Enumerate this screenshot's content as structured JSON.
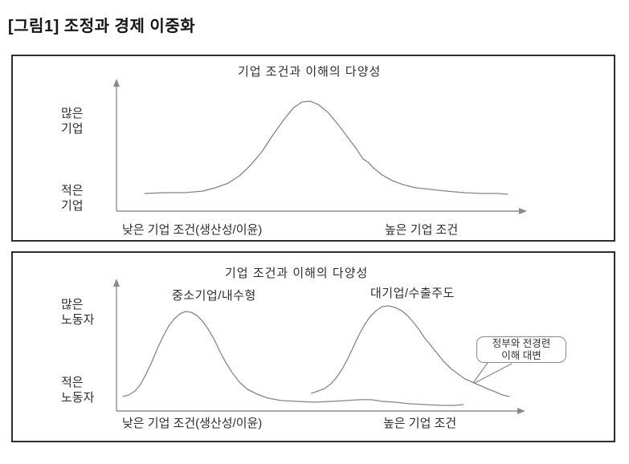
{
  "header": {
    "title": "[그림1] 조정과 경제 이중화"
  },
  "chart_data": [
    {
      "type": "line",
      "title": "기업 조건과 이해의 다양성",
      "x_axis": {
        "left_label": "낮은 기업 조건(생산성/이윤)",
        "right_label": "높은 기업 조건",
        "scale": "qualitative",
        "arrow": true
      },
      "y_axis": {
        "top_label": "많은\n기업",
        "bottom_label": "적은\n기업",
        "scale": "qualitative",
        "arrow": true
      },
      "grid": false,
      "series": [
        {
          "shape": "unimodal-bell",
          "points": [
            [
              0.069,
              0.134
            ],
            [
              0.118,
              0.14
            ],
            [
              0.167,
              0.14
            ],
            [
              0.21,
              0.152
            ],
            [
              0.241,
              0.177
            ],
            [
              0.273,
              0.213
            ],
            [
              0.3,
              0.268
            ],
            [
              0.327,
              0.348
            ],
            [
              0.355,
              0.451
            ],
            [
              0.382,
              0.579
            ],
            [
              0.41,
              0.701
            ],
            [
              0.433,
              0.787
            ],
            [
              0.453,
              0.829
            ],
            [
              0.473,
              0.835
            ],
            [
              0.492,
              0.811
            ],
            [
              0.516,
              0.75
            ],
            [
              0.539,
              0.665
            ],
            [
              0.563,
              0.567
            ],
            [
              0.586,
              0.47
            ],
            [
              0.602,
              0.396
            ],
            [
              0.614,
              0.372
            ],
            [
              0.629,
              0.323
            ],
            [
              0.649,
              0.274
            ],
            [
              0.673,
              0.232
            ],
            [
              0.7,
              0.201
            ],
            [
              0.731,
              0.177
            ],
            [
              0.767,
              0.165
            ],
            [
              0.806,
              0.152
            ],
            [
              0.849,
              0.14
            ],
            [
              0.892,
              0.134
            ],
            [
              0.931,
              0.134
            ],
            [
              0.955,
              0.128
            ]
          ]
        }
      ]
    },
    {
      "type": "line",
      "title": "기업 조건과 이해의 다양성",
      "x_axis": {
        "left_label": "낮은 기업 조건(생산성/이윤)",
        "right_label": "높은 기업 조건",
        "scale": "qualitative",
        "arrow": true
      },
      "y_axis": {
        "top_label": "많은\n노동자",
        "bottom_label": "적은\n노동자",
        "scale": "qualitative",
        "arrow": true
      },
      "grid": false,
      "series": [
        {
          "name": "중소기업/내수형",
          "shape": "left-peak-with-long-low-right-tail",
          "points": [
            [
              0.016,
              0.113
            ],
            [
              0.03,
              0.125
            ],
            [
              0.046,
              0.156
            ],
            [
              0.059,
              0.206
            ],
            [
              0.073,
              0.288
            ],
            [
              0.087,
              0.381
            ],
            [
              0.101,
              0.488
            ],
            [
              0.115,
              0.581
            ],
            [
              0.129,
              0.663
            ],
            [
              0.143,
              0.719
            ],
            [
              0.156,
              0.756
            ],
            [
              0.17,
              0.775
            ],
            [
              0.184,
              0.769
            ],
            [
              0.198,
              0.744
            ],
            [
              0.212,
              0.7
            ],
            [
              0.226,
              0.638
            ],
            [
              0.24,
              0.563
            ],
            [
              0.253,
              0.475
            ],
            [
              0.269,
              0.381
            ],
            [
              0.285,
              0.3
            ],
            [
              0.303,
              0.225
            ],
            [
              0.323,
              0.169
            ],
            [
              0.347,
              0.131
            ],
            [
              0.374,
              0.1
            ],
            [
              0.406,
              0.081
            ],
            [
              0.446,
              0.075
            ],
            [
              0.489,
              0.069
            ],
            [
              0.529,
              0.075
            ],
            [
              0.564,
              0.081
            ],
            [
              0.6,
              0.088
            ],
            [
              0.628,
              0.088
            ],
            [
              0.655,
              0.075
            ],
            [
              0.687,
              0.069
            ],
            [
              0.723,
              0.056
            ],
            [
              0.762,
              0.05
            ],
            [
              0.802,
              0.044
            ],
            [
              0.832,
              0.044
            ],
            [
              0.855,
              0.05
            ]
          ]
        },
        {
          "name": "대기업/수출주도",
          "shape": "right-peak",
          "points": [
            [
              0.481,
              0.138
            ],
            [
              0.497,
              0.156
            ],
            [
              0.513,
              0.175
            ],
            [
              0.529,
              0.213
            ],
            [
              0.543,
              0.263
            ],
            [
              0.556,
              0.325
            ],
            [
              0.57,
              0.406
            ],
            [
              0.584,
              0.5
            ],
            [
              0.598,
              0.594
            ],
            [
              0.612,
              0.675
            ],
            [
              0.626,
              0.738
            ],
            [
              0.64,
              0.781
            ],
            [
              0.655,
              0.813
            ],
            [
              0.671,
              0.819
            ],
            [
              0.687,
              0.806
            ],
            [
              0.703,
              0.781
            ],
            [
              0.717,
              0.744
            ],
            [
              0.731,
              0.694
            ],
            [
              0.745,
              0.638
            ],
            [
              0.758,
              0.575
            ],
            [
              0.774,
              0.513
            ],
            [
              0.79,
              0.45
            ],
            [
              0.806,
              0.388
            ],
            [
              0.824,
              0.331
            ],
            [
              0.842,
              0.288
            ],
            [
              0.859,
              0.25
            ],
            [
              0.877,
              0.225
            ],
            [
              0.895,
              0.2
            ],
            [
              0.913,
              0.175
            ],
            [
              0.933,
              0.15
            ],
            [
              0.952,
              0.125
            ],
            [
              0.968,
              0.113
            ]
          ]
        }
      ],
      "annotation": {
        "text": "정부와 전경련\n이해 대변",
        "points_to_series": "대기업/수출주도"
      }
    }
  ],
  "colors": {
    "curve": "#858585",
    "axis": "#8f8f8f",
    "panel_border": "#2f2f2f",
    "text": "#2e2e2e"
  }
}
